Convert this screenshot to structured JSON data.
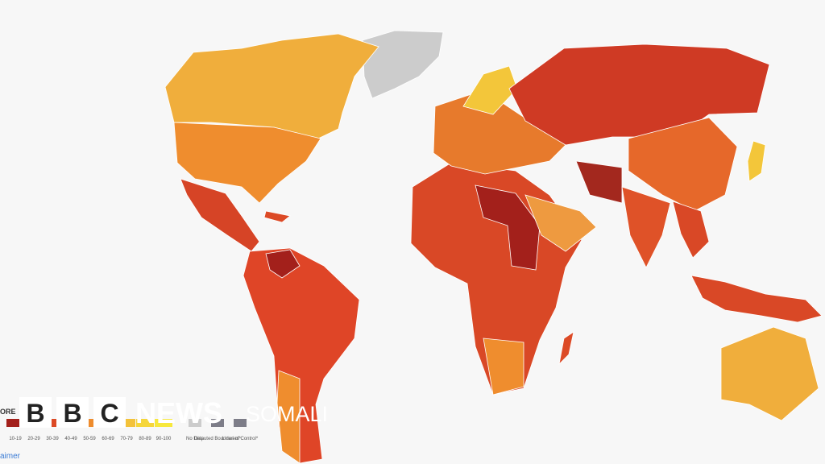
{
  "legend": {
    "title": "ORE",
    "items": [
      {
        "label": "10-19",
        "color": "#a3201b"
      },
      {
        "label": "20-29",
        "color": "#c8321f"
      },
      {
        "label": "30-39",
        "color": "#dc4a26"
      },
      {
        "label": "40-49",
        "color": "#e76a2a"
      },
      {
        "label": "50-59",
        "color": "#ee8c2e"
      },
      {
        "label": "60-69",
        "color": "#f0a83a"
      },
      {
        "label": "70-79",
        "color": "#f3c23a"
      },
      {
        "label": "80-89",
        "color": "#f5d63a"
      },
      {
        "label": "90-100",
        "color": "#f7e83c"
      }
    ],
    "extras": [
      {
        "label": "No Data",
        "color": "#cccccc"
      },
      {
        "label": "Disputed Boundaries*",
        "color": "#7d7d88"
      },
      {
        "label": "Lines of Control*",
        "color": "#7d7d88"
      }
    ],
    "note": "aimer"
  },
  "brand": {
    "letters": [
      "B",
      "B",
      "C"
    ],
    "name": "NEWS",
    "service": "SOMALI"
  }
}
